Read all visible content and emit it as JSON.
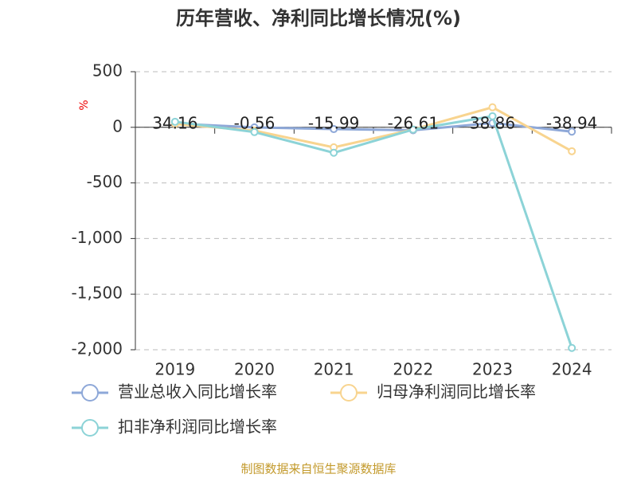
{
  "chart_data": {
    "type": "line",
    "title": "历年营收、净利同比增长情况(%)",
    "y_label": "%",
    "categories": [
      "2019",
      "2020",
      "2021",
      "2022",
      "2023",
      "2024"
    ],
    "series": [
      {
        "name": "营业总收入同比增长率",
        "color": "#8ea8d8",
        "values": [
          34.16,
          -0.56,
          -15.99,
          -26.61,
          38.86,
          -38.94
        ],
        "show_labels": true
      },
      {
        "name": "归母净利润同比增长率",
        "color": "#f8d48f",
        "values": [
          30,
          -30,
          -180,
          -20,
          180,
          -215
        ],
        "show_labels": false
      },
      {
        "name": "扣非净利润同比增长率",
        "color": "#8cd3d7",
        "values": [
          50,
          -43,
          -229,
          -20,
          100,
          -1984
        ],
        "show_labels": false
      }
    ],
    "ylim": [
      -2000,
      500
    ],
    "yticks": [
      500,
      0,
      -500,
      {
        "value": -1000,
        "label": "-1,000"
      },
      {
        "value": -1500,
        "label": "-1,500"
      },
      {
        "value": -2000,
        "label": "-2,000"
      }
    ],
    "grid": true,
    "source": "制图数据来自恒生聚源数据库"
  }
}
